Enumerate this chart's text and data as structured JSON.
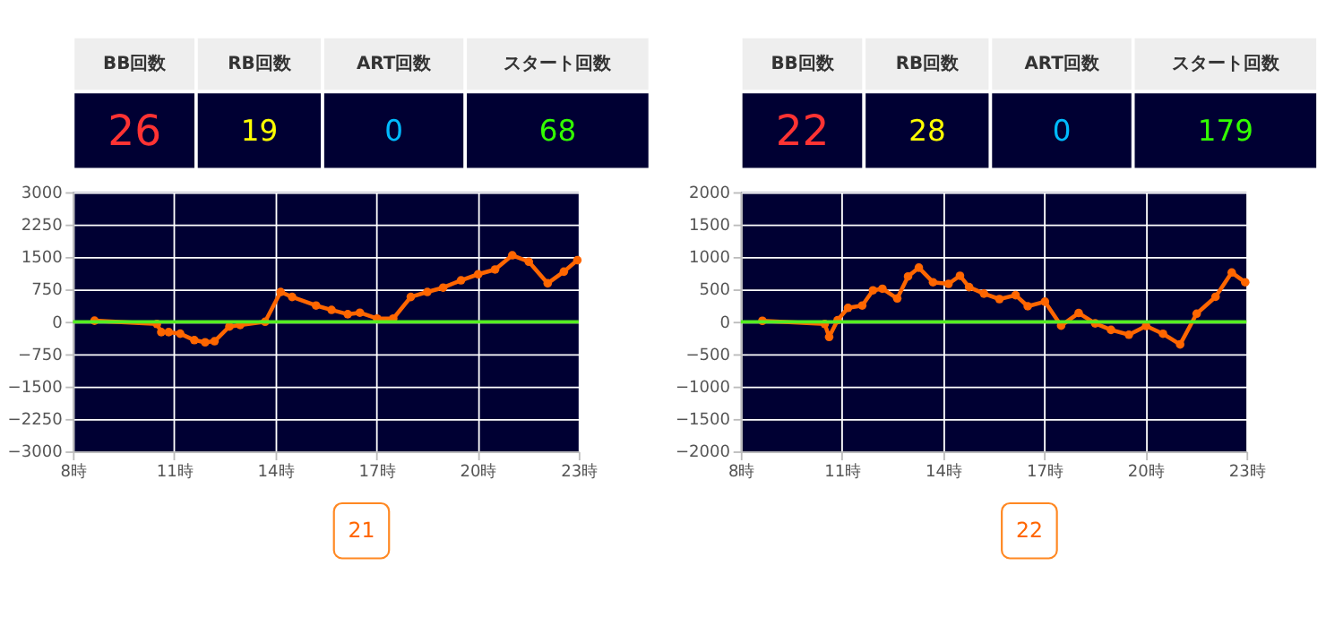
{
  "chart_data": [
    {
      "type": "line",
      "annotations": [
        "BB回数",
        "RB回数",
        "ART回数",
        "スタート回数",
        "26",
        "19",
        "0",
        "68",
        "21"
      ],
      "xlim": [
        8,
        23
      ],
      "xticks": [
        {
          "value": 8,
          "label": "8時"
        },
        {
          "value": 11,
          "label": "11時"
        },
        {
          "value": 14,
          "label": "14時"
        },
        {
          "value": 17,
          "label": "17時"
        },
        {
          "value": 20,
          "label": "20時"
        },
        {
          "value": 23,
          "label": "23時"
        }
      ],
      "ylim": [
        -3000,
        3000
      ],
      "yticks": [
        -3000,
        -2250,
        -1500,
        -750,
        0,
        750,
        1500,
        2250,
        3000
      ],
      "grid": true,
      "marker": "circle",
      "line_style": "solid",
      "ref_lines": [
        {
          "axis": "y",
          "value": 0,
          "color": "#55ee22"
        }
      ],
      "series": [
        {
          "color": "#ff6600",
          "x": [
            8.64,
            10.49,
            10.62,
            10.84,
            11.18,
            11.6,
            11.92,
            12.2,
            12.64,
            12.96,
            13.7,
            14.16,
            14.5,
            15.21,
            15.67,
            16.15,
            16.51,
            17.02,
            17.5,
            18.02,
            18.51,
            18.98,
            19.51,
            20.02,
            20.52,
            21.03,
            21.52,
            22.08,
            22.56,
            22.96
          ],
          "values": [
            25,
            -50,
            -240,
            -240,
            -275,
            -425,
            -475,
            -450,
            -110,
            -75,
            0,
            690,
            575,
            375,
            275,
            175,
            210,
            75,
            75,
            575,
            690,
            790,
            960,
            1100,
            1210,
            1540,
            1390,
            890,
            1160,
            1425
          ]
        }
      ]
    },
    {
      "type": "line",
      "annotations": [
        "BB回数",
        "RB回数",
        "ART回数",
        "スタート回数",
        "22",
        "28",
        "0",
        "179",
        "22"
      ],
      "xlim": [
        8,
        23
      ],
      "xticks": [
        {
          "value": 8,
          "label": "8時"
        },
        {
          "value": 11,
          "label": "11時"
        },
        {
          "value": 14,
          "label": "14時"
        },
        {
          "value": 17,
          "label": "17時"
        },
        {
          "value": 20,
          "label": "20時"
        },
        {
          "value": 23,
          "label": "23時"
        }
      ],
      "ylim": [
        -2000,
        2000
      ],
      "yticks": [
        -2000,
        -1500,
        -1000,
        -500,
        0,
        500,
        1000,
        1500,
        2000
      ],
      "grid": true,
      "marker": "circle",
      "line_style": "solid",
      "ref_lines": [
        {
          "axis": "y",
          "value": 0,
          "color": "#55ee22"
        }
      ],
      "series": [
        {
          "color": "#ff6600",
          "x": [
            8.64,
            10.49,
            10.62,
            10.87,
            11.18,
            11.6,
            11.92,
            12.2,
            12.64,
            12.96,
            13.28,
            13.7,
            14.16,
            14.5,
            14.77,
            15.21,
            15.67,
            16.15,
            16.51,
            17.02,
            17.5,
            18.02,
            18.51,
            18.98,
            19.51,
            20.02,
            20.52,
            21.03,
            21.52,
            22.08,
            22.56,
            22.96
          ],
          "values": [
            15,
            -35,
            -235,
            25,
            215,
            250,
            485,
            510,
            360,
            700,
            835,
            610,
            585,
            710,
            535,
            435,
            350,
            410,
            240,
            310,
            -60,
            135,
            -25,
            -125,
            -200,
            -65,
            -185,
            -350,
            125,
            385,
            760,
            610
          ]
        }
      ]
    }
  ]
}
